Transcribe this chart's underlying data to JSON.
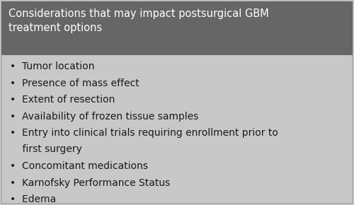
{
  "title_line1": "Considerations that may impact postsurgical GBM",
  "title_line2": "treatment options",
  "title_bg_color": "#666666",
  "title_text_color": "#ffffff",
  "body_bg_color": "#c8c8c8",
  "body_text_color": "#1a1a1a",
  "border_color": "#aaaaaa",
  "bullet_items": [
    "Tumor location",
    "Presence of mass effect",
    "Extent of resection",
    "Availability of frozen tissue samples",
    "Entry into clinical trials requiring enrollment prior to",
    "    first surgery",
    "Concomitant medications",
    "Karnofsky Performance Status",
    "Edema"
  ],
  "bullet_flags": [
    true,
    true,
    true,
    true,
    true,
    false,
    true,
    true,
    true
  ],
  "title_fontsize": 10.5,
  "body_fontsize": 10.0,
  "fig_width": 5.0,
  "fig_height": 2.9,
  "dpi": 100
}
